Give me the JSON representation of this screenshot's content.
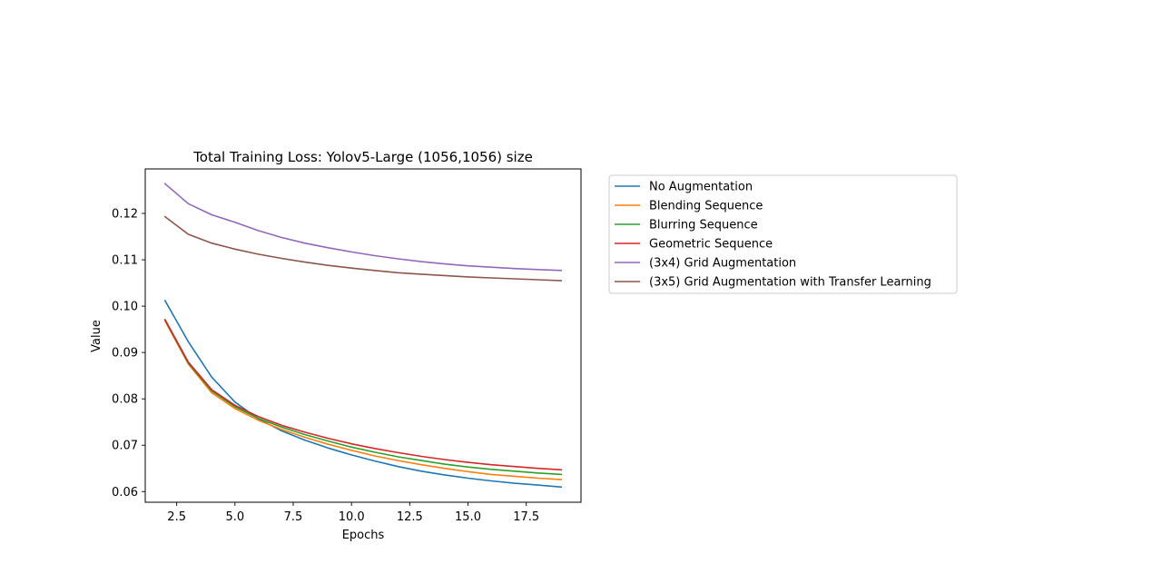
{
  "chart_data": {
    "type": "line",
    "title": "Total Training Loss: Yolov5-Large (1056,1056) size",
    "xlabel": "Epochs",
    "ylabel": "Value",
    "xlim": [
      1.15,
      19.85
    ],
    "ylim": [
      0.0577,
      0.1296
    ],
    "x_ticks": [
      2.5,
      5.0,
      7.5,
      10.0,
      12.5,
      15.0,
      17.5
    ],
    "x_tick_labels": [
      "2.5",
      "5.0",
      "7.5",
      "10.0",
      "12.5",
      "15.0",
      "17.5"
    ],
    "y_ticks": [
      0.06,
      0.07,
      0.08,
      0.09,
      0.1,
      0.11,
      0.12
    ],
    "y_tick_labels": [
      "0.06",
      "0.07",
      "0.08",
      "0.09",
      "0.10",
      "0.11",
      "0.12"
    ],
    "grid": false,
    "legend_position": "outside-right",
    "x": [
      2,
      3,
      4,
      5,
      6,
      7,
      8,
      9,
      10,
      11,
      12,
      13,
      14,
      15,
      16,
      17,
      18,
      19
    ],
    "series": [
      {
        "name": "No Augmentation",
        "color": "#1f77b4",
        "values": [
          0.1012,
          0.0923,
          0.0847,
          0.0793,
          0.0757,
          0.0731,
          0.0711,
          0.0694,
          0.0679,
          0.0666,
          0.0654,
          0.0644,
          0.0636,
          0.0629,
          0.0623,
          0.0618,
          0.0614,
          0.061
        ]
      },
      {
        "name": "Blending Sequence",
        "color": "#ff7f0e",
        "values": [
          0.0968,
          0.0875,
          0.0813,
          0.0779,
          0.0754,
          0.0734,
          0.0717,
          0.0702,
          0.0689,
          0.0677,
          0.0667,
          0.0658,
          0.065,
          0.0643,
          0.0637,
          0.0633,
          0.0629,
          0.0626
        ]
      },
      {
        "name": "Blurring Sequence",
        "color": "#2ca02c",
        "values": [
          0.097,
          0.0877,
          0.0817,
          0.0783,
          0.0758,
          0.0739,
          0.0723,
          0.0709,
          0.0696,
          0.0685,
          0.0675,
          0.0667,
          0.0659,
          0.0653,
          0.0648,
          0.0644,
          0.064,
          0.0637
        ]
      },
      {
        "name": "Geometric Sequence",
        "color": "#d62728",
        "values": [
          0.0971,
          0.0879,
          0.082,
          0.0786,
          0.0762,
          0.0743,
          0.0728,
          0.0715,
          0.0703,
          0.0693,
          0.0684,
          0.0676,
          0.0669,
          0.0663,
          0.0658,
          0.0654,
          0.065,
          0.0647
        ]
      },
      {
        "name": "(3x4) Grid Augmentation",
        "color": "#9467bd",
        "values": [
          0.1264,
          0.1221,
          0.1197,
          0.1181,
          0.1163,
          0.1148,
          0.1136,
          0.1126,
          0.1117,
          0.1109,
          0.1102,
          0.1096,
          0.1091,
          0.1087,
          0.1084,
          0.1081,
          0.1079,
          0.1077
        ]
      },
      {
        "name": "(3x5) Grid Augmentation with Transfer Learning",
        "color": "#8c564b",
        "values": [
          0.1193,
          0.1155,
          0.1136,
          0.1123,
          0.1112,
          0.1103,
          0.1095,
          0.1088,
          0.1082,
          0.1077,
          0.1072,
          0.1069,
          0.1066,
          0.1063,
          0.1061,
          0.1059,
          0.1057,
          0.1055
        ]
      }
    ]
  }
}
